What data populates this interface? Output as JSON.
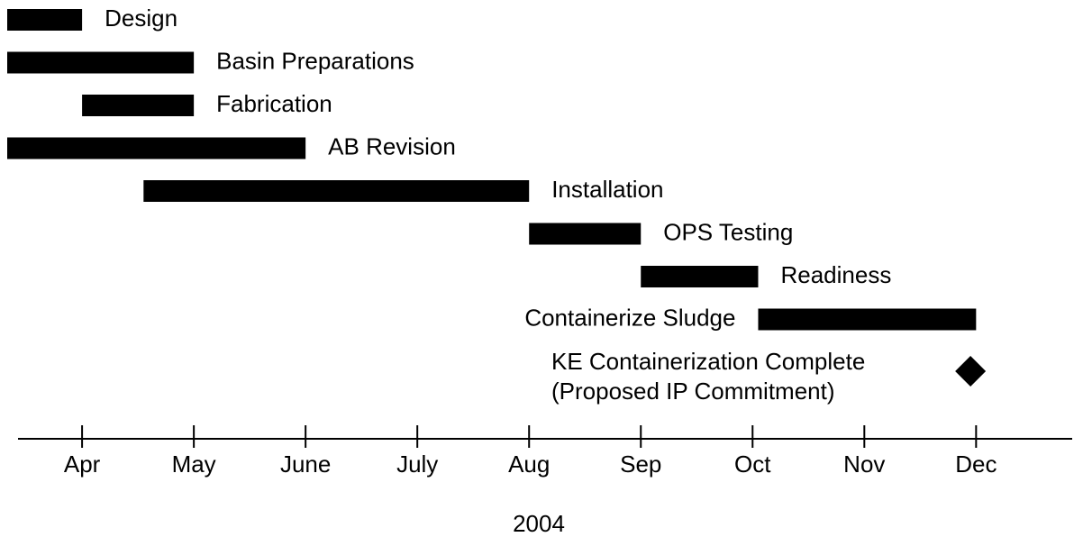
{
  "chart_data": {
    "type": "gantt",
    "xlabel": "2004",
    "color": "#000000",
    "tasks": [
      {
        "name": "Design",
        "start": 3.33,
        "end": 4.0
      },
      {
        "name": "Basin Preparations",
        "start": 3.33,
        "end": 5.0
      },
      {
        "name": "Fabrication",
        "start": 4.0,
        "end": 5.0
      },
      {
        "name": "AB Revision",
        "start": 3.33,
        "end": 6.0
      },
      {
        "name": "Installation",
        "start": 4.55,
        "end": 8.0
      },
      {
        "name": "OPS Testing",
        "start": 8.0,
        "end": 9.0
      },
      {
        "name": "Readiness",
        "start": 9.0,
        "end": 10.05
      },
      {
        "name": "Containerize Sludge",
        "start": 10.05,
        "end": 12.0
      }
    ],
    "milestones": [
      {
        "label": [
          "KE Containerization Complete",
          "(Proposed IP Commitment)"
        ],
        "x": 11.95
      }
    ],
    "xlim": [
      3.33,
      12.86
    ],
    "xticks": [
      {
        "value": 4,
        "label": "Apr"
      },
      {
        "value": 5,
        "label": "May"
      },
      {
        "value": 6,
        "label": "June"
      },
      {
        "value": 7,
        "label": "July"
      },
      {
        "value": 8,
        "label": "Aug"
      },
      {
        "value": 9,
        "label": "Sep"
      },
      {
        "value": 10,
        "label": "Oct"
      },
      {
        "value": 11,
        "label": "Nov"
      },
      {
        "value": 12,
        "label": "Dec"
      }
    ]
  }
}
